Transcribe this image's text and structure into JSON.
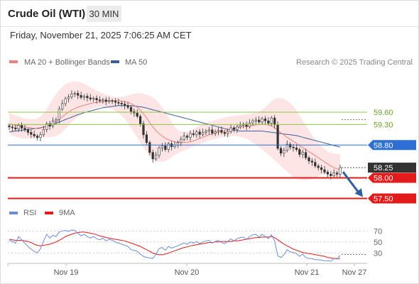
{
  "header": {
    "title": "Crude Oil (WTI)",
    "interval": "30 MIN",
    "datetime": "Friday, November 21, 2025 7:06:25 AM CET"
  },
  "colors": {
    "price": "#333333",
    "ma20": "#f08080",
    "bollinger_fill": "#fde0e0",
    "ma50": "#3a5e9a",
    "resistance": "#8cc63f",
    "pivot": "#2e6fd6",
    "support": "#e31b1b",
    "last_price_box": "#333333",
    "rsi": "#6a8ed6",
    "rsi_ma": "#e31b1b",
    "arrow": "#2f5f9e"
  },
  "chart_data": [
    {
      "type": "line",
      "title": "",
      "legend": {
        "placement": "top-left",
        "entries": [
          {
            "label": "MA 20 + Bollinger Bands",
            "color": "#f08080"
          },
          {
            "label": "MA 50",
            "color": "#3a5e9a"
          }
        ]
      },
      "credit": "Research © 2025 Trading Central",
      "x_tick_labels": [
        "Nov 19",
        "Nov 20",
        "Nov 21",
        "Nov 27"
      ],
      "y_range": [
        57.3,
        60.5
      ],
      "grid": false,
      "price_closes": [
        59.24,
        59.22,
        59.19,
        59.28,
        59.21,
        59.17,
        59.11,
        59.06,
        59.02,
        58.98,
        59.05,
        59.18,
        59.32,
        59.26,
        59.38,
        59.42,
        59.68,
        59.81,
        59.93,
        59.97,
        60.04,
        60.06,
        60.01,
        59.96,
        59.99,
        59.95,
        59.92,
        59.94,
        59.9,
        59.88,
        59.9,
        59.86,
        59.88,
        59.87,
        59.84,
        59.82,
        59.8,
        59.76,
        59.72,
        59.62,
        59.58,
        59.5,
        59.32,
        59.05,
        58.86,
        58.62,
        58.46,
        58.55,
        58.73,
        58.78,
        58.69,
        58.83,
        58.76,
        58.8,
        58.86,
        58.94,
        59.02,
        58.99,
        59.08,
        59.05,
        59.12,
        59.06,
        59.11,
        59.14,
        59.17,
        59.09,
        59.13,
        59.16,
        59.11,
        59.08,
        59.13,
        59.22,
        59.18,
        59.24,
        59.28,
        59.31,
        59.25,
        59.34,
        59.39,
        59.41,
        59.36,
        59.44,
        59.39,
        59.33,
        59.46,
        59.29,
        58.72,
        58.6,
        58.67,
        58.82,
        58.75,
        58.73,
        58.69,
        58.57,
        58.62,
        58.49,
        58.41,
        58.38,
        58.29,
        58.25,
        58.2,
        58.14,
        58.09,
        58.05,
        58.12,
        58.09,
        58.25
      ],
      "ma20": [
        59.32,
        59.3,
        59.28,
        59.27,
        59.25,
        59.24,
        59.23,
        59.22,
        59.21,
        59.2,
        59.21,
        59.23,
        59.26,
        59.29,
        59.33,
        59.37,
        59.43,
        59.49,
        59.55,
        59.6,
        59.65,
        59.69,
        59.72,
        59.75,
        59.77,
        59.79,
        59.81,
        59.83,
        59.84,
        59.85,
        59.86,
        59.87,
        59.88,
        59.88,
        59.88,
        59.88,
        59.87,
        59.86,
        59.84,
        59.81,
        59.77,
        59.72,
        59.65,
        59.56,
        59.46,
        59.35,
        59.24,
        59.15,
        59.08,
        59.02,
        58.97,
        58.93,
        58.9,
        58.88,
        58.87,
        58.86,
        58.86,
        58.87,
        58.88,
        58.9,
        58.93,
        58.96,
        58.99,
        59.02,
        59.05,
        59.07,
        59.09,
        59.11,
        59.13,
        59.15,
        59.17,
        59.19,
        59.21,
        59.22,
        59.24,
        59.25,
        59.26,
        59.27,
        59.28,
        59.29,
        59.3,
        59.3,
        59.3,
        59.29,
        59.27,
        59.22,
        59.16,
        59.1,
        59.04,
        58.99,
        58.94,
        58.89,
        58.84,
        58.79,
        58.74,
        58.69,
        58.64,
        58.59,
        58.54,
        58.49,
        58.44,
        58.39,
        58.34,
        58.29,
        58.25,
        58.22,
        58.2
      ],
      "bollinger_upper": [
        59.58,
        59.55,
        59.52,
        59.5,
        59.47,
        59.45,
        59.44,
        59.43,
        59.43,
        59.45,
        59.5,
        59.58,
        59.68,
        59.8,
        59.93,
        60.04,
        60.14,
        60.22,
        60.28,
        60.32,
        60.34,
        60.35,
        60.34,
        60.32,
        60.29,
        60.25,
        60.21,
        60.17,
        60.13,
        60.09,
        60.06,
        60.03,
        60.0,
        59.98,
        59.97,
        59.97,
        59.98,
        59.99,
        60.01,
        60.03,
        60.05,
        60.06,
        60.06,
        60.05,
        60.03,
        60.0,
        59.96,
        59.9,
        59.82,
        59.72,
        59.6,
        59.48,
        59.36,
        59.25,
        59.17,
        59.13,
        59.12,
        59.13,
        59.16,
        59.2,
        59.24,
        59.28,
        59.31,
        59.34,
        59.37,
        59.39,
        59.41,
        59.43,
        59.45,
        59.47,
        59.49,
        59.5,
        59.51,
        59.52,
        59.53,
        59.54,
        59.55,
        59.56,
        59.57,
        59.59,
        59.62,
        59.66,
        59.72,
        59.8,
        59.87,
        59.92,
        59.94,
        59.94,
        59.92,
        59.88,
        59.82,
        59.74,
        59.64,
        59.52,
        59.4,
        59.28,
        59.16,
        59.04,
        58.94,
        58.85,
        58.77,
        58.7,
        58.65,
        58.61,
        58.59,
        58.58,
        58.58
      ],
      "bollinger_lower": [
        59.06,
        59.03,
        59.0,
        58.98,
        58.96,
        58.95,
        58.95,
        58.96,
        58.97,
        58.98,
        58.99,
        58.99,
        58.99,
        58.99,
        59.0,
        59.02,
        59.06,
        59.12,
        59.19,
        59.27,
        59.35,
        59.42,
        59.49,
        59.55,
        59.6,
        59.64,
        59.67,
        59.7,
        59.72,
        59.73,
        59.73,
        59.72,
        59.7,
        59.67,
        59.63,
        59.58,
        59.51,
        59.43,
        59.33,
        59.22,
        59.1,
        58.98,
        58.86,
        58.74,
        58.62,
        58.52,
        58.45,
        58.41,
        58.39,
        58.39,
        58.41,
        58.45,
        58.5,
        58.55,
        58.6,
        58.64,
        58.67,
        58.7,
        58.73,
        58.76,
        58.79,
        58.82,
        58.85,
        58.88,
        58.91,
        58.93,
        58.95,
        58.97,
        58.99,
        59.0,
        59.01,
        59.02,
        59.02,
        59.01,
        59.0,
        58.98,
        58.95,
        58.91,
        58.86,
        58.81,
        58.75,
        58.69,
        58.63,
        58.57,
        58.5,
        58.43,
        58.36,
        58.29,
        58.22,
        58.15,
        58.08,
        58.02,
        57.98,
        57.95,
        57.94,
        57.94,
        57.95,
        57.97,
        58.0,
        58.04,
        58.08,
        58.1,
        58.1,
        58.08,
        58.06,
        58.04,
        58.02
      ],
      "ma50": [
        59.12,
        59.13,
        59.14,
        59.15,
        59.16,
        59.17,
        59.18,
        59.19,
        59.2,
        59.21,
        59.22,
        59.24,
        59.26,
        59.28,
        59.3,
        59.33,
        59.36,
        59.39,
        59.42,
        59.45,
        59.48,
        59.51,
        59.54,
        59.56,
        59.59,
        59.61,
        59.63,
        59.65,
        59.67,
        59.69,
        59.71,
        59.72,
        59.73,
        59.74,
        59.75,
        59.76,
        59.76,
        59.76,
        59.76,
        59.76,
        59.75,
        59.74,
        59.73,
        59.72,
        59.7,
        59.68,
        59.66,
        59.64,
        59.62,
        59.6,
        59.58,
        59.56,
        59.54,
        59.52,
        59.5,
        59.48,
        59.46,
        59.44,
        59.42,
        59.4,
        59.38,
        59.36,
        59.34,
        59.32,
        59.3,
        59.28,
        59.26,
        59.24,
        59.22,
        59.2,
        59.18,
        59.17,
        59.16,
        59.15,
        59.14,
        59.14,
        59.14,
        59.14,
        59.14,
        59.14,
        59.14,
        59.14,
        59.13,
        59.12,
        59.11,
        59.1,
        59.09,
        59.08,
        59.07,
        59.06,
        59.05,
        59.04,
        59.03,
        59.01,
        58.99,
        58.97,
        58.95,
        58.93,
        58.91,
        58.89,
        58.87,
        58.85,
        58.83,
        58.81,
        58.79,
        58.77,
        58.75
      ],
      "levels": [
        {
          "label": "59.60",
          "value": 59.6,
          "kind": "resistance"
        },
        {
          "label": "59.30",
          "value": 59.3,
          "kind": "resistance"
        },
        {
          "label": "58.80",
          "value": 58.8,
          "kind": "pivot"
        },
        {
          "label": "58.25",
          "value": 58.25,
          "kind": "last"
        },
        {
          "label": "58.00",
          "value": 58.0,
          "kind": "support"
        },
        {
          "label": "57.50",
          "value": 57.5,
          "kind": "support"
        }
      ],
      "forecast_arrow": {
        "from": 58.25,
        "to": 57.5,
        "direction": "down"
      }
    },
    {
      "type": "line",
      "title": "",
      "legend": {
        "placement": "top-left",
        "entries": [
          {
            "label": "RSI",
            "color": "#6a8ed6"
          },
          {
            "label": "9MA",
            "color": "#e31b1b"
          }
        ]
      },
      "y_tick_labels": [
        "70",
        "50",
        "30"
      ],
      "y_range": [
        15,
        82
      ],
      "rsi": [
        53,
        51,
        48,
        60,
        54,
        48,
        42,
        37,
        33,
        30,
        38,
        52,
        64,
        57,
        62,
        60,
        68,
        70,
        71,
        69,
        72,
        71,
        66,
        61,
        64,
        60,
        57,
        60,
        56,
        54,
        57,
        52,
        55,
        53,
        50,
        48,
        46,
        44,
        42,
        36,
        35,
        33,
        28,
        24,
        22,
        21,
        20,
        28,
        38,
        40,
        35,
        42,
        39,
        41,
        43,
        46,
        48,
        46,
        50,
        48,
        51,
        47,
        50,
        52,
        53,
        48,
        51,
        53,
        49,
        47,
        51,
        56,
        52,
        56,
        58,
        59,
        55,
        60,
        63,
        64,
        59,
        64,
        60,
        56,
        63,
        52,
        25,
        22,
        27,
        36,
        32,
        31,
        29,
        24,
        28,
        22,
        20,
        20,
        18,
        18,
        17,
        16,
        16,
        15,
        20,
        19,
        26
      ],
      "rsi_ma": [
        55,
        54,
        53,
        53,
        53,
        52,
        51,
        49,
        46,
        44,
        43,
        44,
        45,
        46,
        48,
        50,
        53,
        56,
        60,
        62,
        64,
        66,
        67,
        68,
        68,
        67,
        66,
        65,
        63,
        61,
        60,
        58,
        57,
        56,
        55,
        54,
        53,
        52,
        50,
        48,
        46,
        44,
        42,
        39,
        36,
        33,
        30,
        28,
        27,
        27,
        28,
        30,
        32,
        34,
        36,
        38,
        40,
        41,
        43,
        44,
        45,
        46,
        47,
        48,
        49,
        49,
        50,
        50,
        51,
        51,
        51,
        51,
        52,
        52,
        53,
        54,
        55,
        56,
        57,
        58,
        58,
        59,
        59,
        59,
        60,
        58,
        54,
        50,
        46,
        43,
        40,
        37,
        35,
        33,
        31,
        30,
        29,
        28,
        27,
        26,
        25,
        24,
        22,
        21,
        20,
        20,
        20
      ],
      "reference_lines": [
        70,
        50,
        30
      ],
      "grid": false
    }
  ]
}
